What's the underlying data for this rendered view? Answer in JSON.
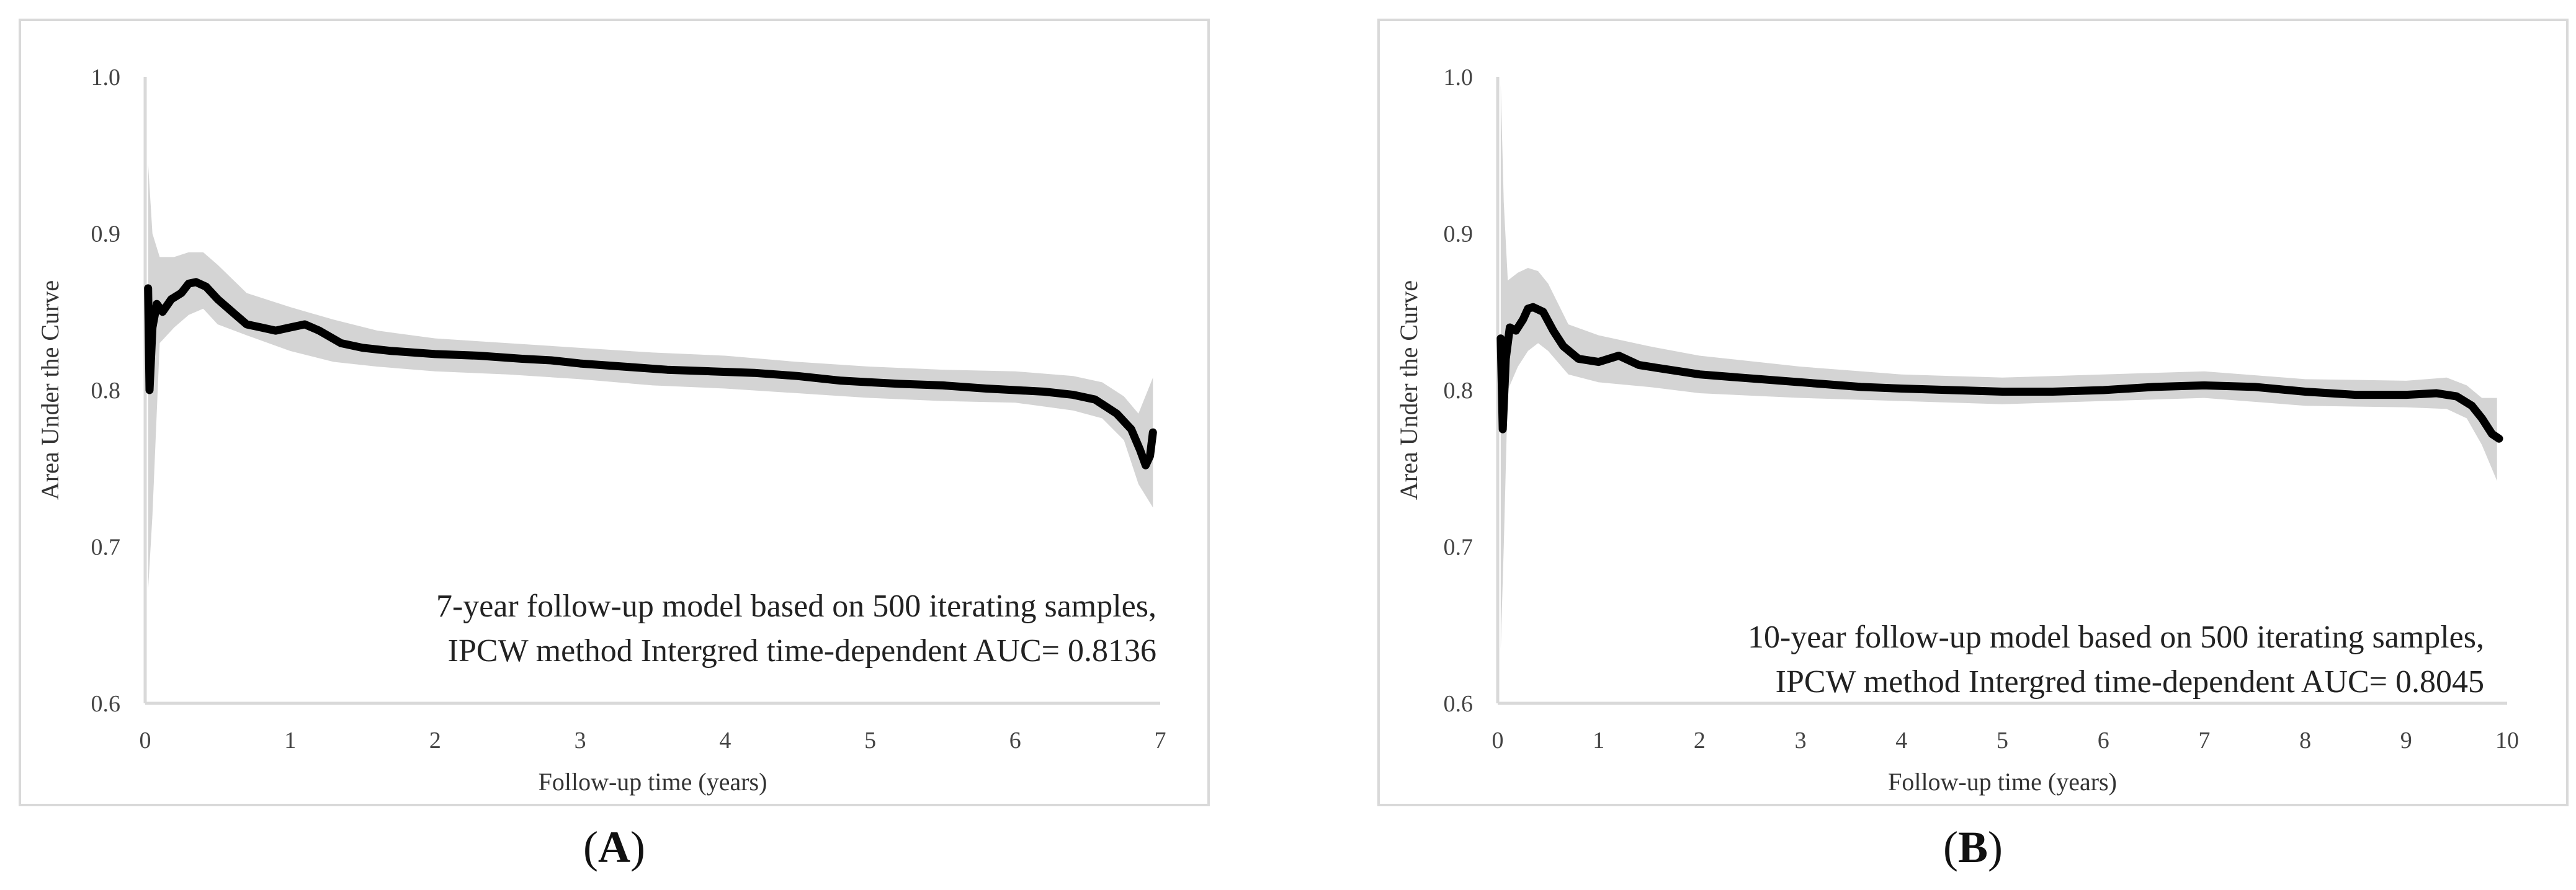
{
  "chart_data": [
    {
      "type": "line",
      "panel": "A",
      "xlabel": "Follow-up time (years)",
      "ylabel": "Area Under the Curve",
      "xlim": [
        0,
        7
      ],
      "ylim": [
        0.6,
        1.0
      ],
      "xticks": [
        "0",
        "1",
        "2",
        "3",
        "4",
        "5",
        "6",
        "7"
      ],
      "yticks": [
        "0.6",
        "0.7",
        "0.8",
        "0.9",
        "1.0"
      ],
      "grid": false,
      "annotation": [
        "7-year follow-up model based on 500 iterating samples,",
        "IPCW method Intergred time-dependent AUC= 0.8136"
      ],
      "series": [
        {
          "name": "AUC",
          "x": [
            0.02,
            0.03,
            0.05,
            0.08,
            0.12,
            0.18,
            0.25,
            0.3,
            0.35,
            0.42,
            0.5,
            0.6,
            0.7,
            0.8,
            0.9,
            1.0,
            1.1,
            1.2,
            1.35,
            1.5,
            1.7,
            2.0,
            2.3,
            2.6,
            2.8,
            3.0,
            3.3,
            3.6,
            3.9,
            4.2,
            4.5,
            4.8,
            5.0,
            5.2,
            5.5,
            5.8,
            6.0,
            6.2,
            6.4,
            6.55,
            6.7,
            6.8,
            6.86,
            6.9,
            6.93,
            6.95
          ],
          "y": [
            0.865,
            0.8,
            0.84,
            0.855,
            0.85,
            0.858,
            0.862,
            0.868,
            0.869,
            0.866,
            0.858,
            0.85,
            0.842,
            0.84,
            0.838,
            0.84,
            0.842,
            0.838,
            0.83,
            0.827,
            0.825,
            0.823,
            0.822,
            0.82,
            0.819,
            0.817,
            0.815,
            0.813,
            0.812,
            0.811,
            0.809,
            0.806,
            0.805,
            0.804,
            0.803,
            0.801,
            0.8,
            0.799,
            0.797,
            0.794,
            0.785,
            0.775,
            0.762,
            0.752,
            0.758,
            0.773
          ]
        },
        {
          "name": "95% CI upper",
          "x": [
            0.02,
            0.05,
            0.1,
            0.2,
            0.3,
            0.4,
            0.5,
            0.7,
            1.0,
            1.3,
            1.6,
            2.0,
            2.5,
            3.0,
            3.5,
            4.0,
            4.5,
            5.0,
            5.5,
            6.0,
            6.4,
            6.6,
            6.75,
            6.85,
            6.95
          ],
          "y": [
            0.945,
            0.9,
            0.885,
            0.885,
            0.888,
            0.888,
            0.88,
            0.862,
            0.853,
            0.845,
            0.838,
            0.833,
            0.83,
            0.827,
            0.824,
            0.822,
            0.818,
            0.815,
            0.813,
            0.812,
            0.809,
            0.805,
            0.796,
            0.785,
            0.808
          ]
        },
        {
          "name": "95% CI lower",
          "x": [
            0.02,
            0.05,
            0.1,
            0.2,
            0.3,
            0.4,
            0.5,
            0.7,
            1.0,
            1.3,
            1.6,
            2.0,
            2.5,
            3.0,
            3.5,
            4.0,
            4.5,
            5.0,
            5.5,
            6.0,
            6.4,
            6.6,
            6.75,
            6.85,
            6.95
          ],
          "y": [
            0.672,
            0.72,
            0.83,
            0.84,
            0.848,
            0.852,
            0.842,
            0.835,
            0.825,
            0.818,
            0.815,
            0.812,
            0.81,
            0.807,
            0.803,
            0.801,
            0.798,
            0.795,
            0.793,
            0.792,
            0.787,
            0.782,
            0.768,
            0.74,
            0.725
          ]
        }
      ]
    },
    {
      "type": "line",
      "panel": "B",
      "xlabel": "Follow-up time (years)",
      "ylabel": "Area Under the Curve",
      "xlim": [
        0,
        10
      ],
      "ylim": [
        0.6,
        1.0
      ],
      "xticks": [
        "0",
        "1",
        "2",
        "3",
        "4",
        "5",
        "6",
        "7",
        "8",
        "9",
        "10"
      ],
      "yticks": [
        "0.6",
        "0.7",
        "0.8",
        "0.9",
        "1.0"
      ],
      "grid": false,
      "annotation": [
        "10-year follow-up model based on 500 iterating samples,",
        "IPCW method Intergred time-dependent AUC= 0.8045"
      ],
      "series": [
        {
          "name": "AUC",
          "x": [
            0.03,
            0.05,
            0.08,
            0.12,
            0.18,
            0.25,
            0.3,
            0.35,
            0.45,
            0.55,
            0.65,
            0.8,
            1.0,
            1.2,
            1.4,
            1.7,
            2.0,
            2.4,
            2.8,
            3.2,
            3.6,
            4.0,
            4.5,
            5.0,
            5.5,
            6.0,
            6.5,
            7.0,
            7.5,
            8.0,
            8.5,
            9.0,
            9.3,
            9.5,
            9.65,
            9.75,
            9.85,
            9.92
          ],
          "y": [
            0.833,
            0.775,
            0.82,
            0.84,
            0.838,
            0.845,
            0.852,
            0.853,
            0.85,
            0.838,
            0.828,
            0.82,
            0.818,
            0.822,
            0.816,
            0.813,
            0.81,
            0.808,
            0.806,
            0.804,
            0.802,
            0.801,
            0.8,
            0.799,
            0.799,
            0.8,
            0.802,
            0.803,
            0.802,
            0.799,
            0.797,
            0.797,
            0.798,
            0.796,
            0.79,
            0.782,
            0.772,
            0.769
          ]
        },
        {
          "name": "95% CI upper",
          "x": [
            0.03,
            0.06,
            0.1,
            0.2,
            0.3,
            0.4,
            0.5,
            0.7,
            1.0,
            1.5,
            2.0,
            3.0,
            4.0,
            5.0,
            6.0,
            7.0,
            8.0,
            9.0,
            9.4,
            9.6,
            9.75,
            9.9
          ],
          "y": [
            0.995,
            0.92,
            0.87,
            0.875,
            0.878,
            0.876,
            0.868,
            0.842,
            0.835,
            0.828,
            0.822,
            0.815,
            0.81,
            0.808,
            0.81,
            0.812,
            0.807,
            0.806,
            0.808,
            0.803,
            0.795,
            0.795
          ]
        },
        {
          "name": "95% CI lower",
          "x": [
            0.03,
            0.06,
            0.1,
            0.2,
            0.3,
            0.4,
            0.5,
            0.7,
            1.0,
            1.5,
            2.0,
            3.0,
            4.0,
            5.0,
            6.0,
            7.0,
            8.0,
            9.0,
            9.4,
            9.6,
            9.75,
            9.9
          ],
          "y": [
            0.635,
            0.7,
            0.8,
            0.815,
            0.825,
            0.83,
            0.825,
            0.81,
            0.805,
            0.802,
            0.798,
            0.795,
            0.793,
            0.791,
            0.793,
            0.795,
            0.79,
            0.789,
            0.788,
            0.782,
            0.765,
            0.742
          ]
        }
      ]
    }
  ],
  "panel_labels": {
    "a": "A",
    "b": "B"
  },
  "colors": {
    "line": "#000000",
    "ci_band": "#d4d4d4",
    "axis": "#d9d9d9"
  }
}
